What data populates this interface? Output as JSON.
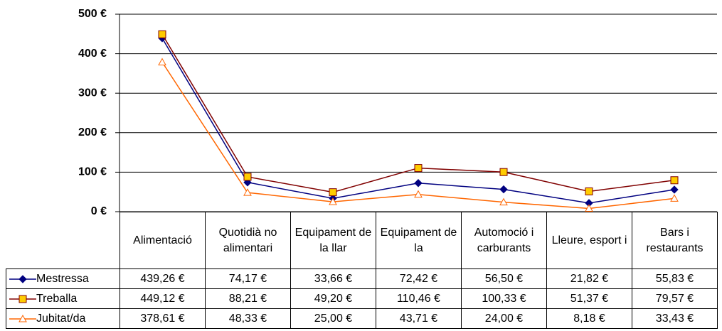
{
  "chart_data": {
    "type": "line",
    "categories": [
      "Alimentació",
      "Quotidià no alimentari",
      "Equipament de la llar",
      "Equipament de la",
      "Automoció i carburants",
      "Lleure, esport i",
      "Bars i restaurants"
    ],
    "series": [
      {
        "name": "Mestressa",
        "color": "#000080",
        "marker": "diamond",
        "marker_fill": "#000080",
        "values": [
          439.26,
          74.17,
          33.66,
          72.42,
          56.5,
          21.82,
          55.83
        ],
        "value_labels": [
          "439,26 €",
          "74,17 €",
          "33,66 €",
          "72,42 €",
          "56,50 €",
          "21,82 €",
          "55,83 €"
        ]
      },
      {
        "name": "Treballa",
        "color": "#800000",
        "marker": "square",
        "marker_fill": "#ffcc00",
        "values": [
          449.12,
          88.21,
          49.2,
          110.46,
          100.33,
          51.37,
          79.57
        ],
        "value_labels": [
          "449,12 €",
          "88,21 €",
          "49,20 €",
          "110,46 €",
          "100,33 €",
          "51,37 €",
          "79,57 €"
        ]
      },
      {
        "name": "Jubitat/da",
        "color": "#ff6600",
        "marker": "triangle",
        "marker_fill": "#ffffff",
        "values": [
          378.61,
          48.33,
          25.0,
          43.71,
          24.0,
          8.18,
          33.43
        ],
        "value_labels": [
          "378,61 €",
          "48,33 €",
          "25,00 €",
          "43,71 €",
          "24,00 €",
          "8,18 €",
          "33,43 €"
        ]
      }
    ],
    "ylim": [
      0,
      500
    ],
    "yticks": [
      {
        "value": 0,
        "label": "0 €"
      },
      {
        "value": 100,
        "label": "100 €"
      },
      {
        "value": 200,
        "label": "200 €"
      },
      {
        "value": 300,
        "label": "300 €"
      },
      {
        "value": 400,
        "label": "400 €"
      },
      {
        "value": 500,
        "label": "500 €"
      }
    ],
    "grid": true
  }
}
